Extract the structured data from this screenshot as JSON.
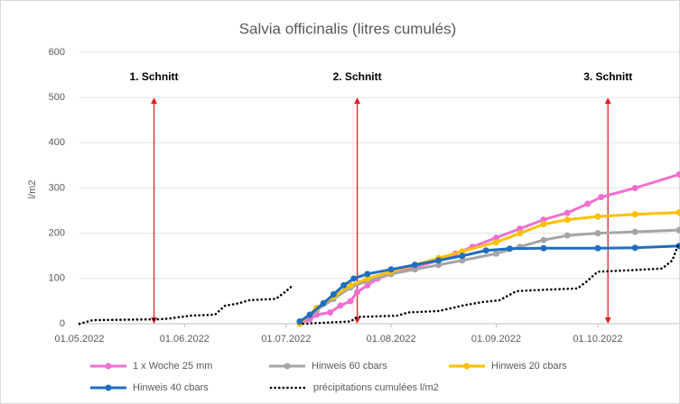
{
  "chart_data": {
    "type": "line",
    "title": "Salvia officinalis (litres cumulés)",
    "y_label": "l/m2",
    "xlim": [
      "01.05.2022",
      "25.10.2022"
    ],
    "xticks": [
      "01.05.2022",
      "01.06.2022",
      "01.07.2022",
      "01.08.2022",
      "01.09.2022",
      "01.10.2022"
    ],
    "ylim": [
      0,
      600
    ],
    "yticks": [
      0,
      100,
      200,
      300,
      400,
      500,
      600
    ],
    "grid": true,
    "legend": "bottom",
    "annotations": [
      {
        "text": "1. Schnitt",
        "x": "23.05.2022",
        "y": [
          0,
          500
        ],
        "color": "#e02020"
      },
      {
        "text": "2. Schnitt",
        "x": "22.07.2022",
        "y": [
          0,
          500
        ],
        "color": "#e02020"
      },
      {
        "text": "3. Schnitt",
        "x": "04.10.2022",
        "y": [
          0,
          500
        ],
        "color": "#e02020"
      }
    ],
    "series": [
      {
        "name": "1 x Woche 25 mm",
        "color": "#f26fd0",
        "markers": true,
        "style": "solid",
        "x": [
          "05.07.2022",
          "08.07.2022",
          "10.07.2022",
          "14.07.2022",
          "17.07.2022",
          "20.07.2022",
          "22.07.2022",
          "25.07.2022",
          "28.07.2022",
          "01.08.2022",
          "08.08.2022",
          "15.08.2022",
          "20.08.2022",
          "25.08.2022",
          "01.09.2022",
          "08.09.2022",
          "15.09.2022",
          "22.09.2022",
          "28.09.2022",
          "02.10.2022",
          "12.10.2022",
          "25.10.2022"
        ],
        "values": [
          0,
          10,
          20,
          25,
          40,
          50,
          70,
          85,
          100,
          110,
          125,
          140,
          155,
          170,
          190,
          210,
          230,
          245,
          265,
          280,
          300,
          330
        ]
      },
      {
        "name": "Hinweis 60 cbars",
        "color": "#a5a5a5",
        "markers": true,
        "style": "solid",
        "x": [
          "05.07.2022",
          "10.07.2022",
          "15.07.2022",
          "20.07.2022",
          "25.07.2022",
          "01.08.2022",
          "08.08.2022",
          "15.08.2022",
          "22.08.2022",
          "01.09.2022",
          "08.09.2022",
          "15.09.2022",
          "22.09.2022",
          "01.10.2022",
          "12.10.2022",
          "25.10.2022"
        ],
        "values": [
          0,
          30,
          55,
          80,
          95,
          110,
          120,
          130,
          140,
          155,
          170,
          185,
          195,
          200,
          203,
          207
        ]
      },
      {
        "name": "Hinweis 20 cbars",
        "color": "#ffc000",
        "markers": true,
        "style": "solid",
        "x": [
          "05.07.2022",
          "10.07.2022",
          "15.07.2022",
          "20.07.2022",
          "25.07.2022",
          "01.08.2022",
          "08.08.2022",
          "15.08.2022",
          "22.08.2022",
          "01.09.2022",
          "08.09.2022",
          "15.09.2022",
          "22.09.2022",
          "01.10.2022",
          "12.10.2022",
          "25.10.2022"
        ],
        "values": [
          0,
          35,
          60,
          85,
          100,
          115,
          130,
          145,
          160,
          180,
          200,
          220,
          230,
          237,
          242,
          246
        ]
      },
      {
        "name": "Hinweis 40 cbars",
        "color": "#1f6fbf",
        "markers": true,
        "style": "solid",
        "x": [
          "05.07.2022",
          "08.07.2022",
          "12.07.2022",
          "15.07.2022",
          "18.07.2022",
          "21.07.2022",
          "25.07.2022",
          "01.08.2022",
          "08.08.2022",
          "15.08.2022",
          "22.08.2022",
          "29.08.2022",
          "05.09.2022",
          "15.09.2022",
          "01.10.2022",
          "12.10.2022",
          "25.10.2022"
        ],
        "values": [
          5,
          20,
          45,
          65,
          85,
          100,
          110,
          120,
          130,
          140,
          150,
          162,
          166,
          167,
          167,
          168,
          172
        ]
      },
      {
        "name": "précipitations cumulées l/m2",
        "color": "#000000",
        "markers": false,
        "style": "dotted",
        "x": [
          "01.05.2022",
          "05.05.2022",
          "25.05.2022",
          "28.05.2022",
          "03.06.2022",
          "10.06.2022",
          "13.06.2022",
          "17.06.2022",
          "20.06.2022",
          "28.06.2022",
          "01.07.2022",
          "03.07.2022",
          "05.07.2022",
          "06.07.2022",
          "20.07.2022",
          "22.07.2022",
          "03.08.2022",
          "06.08.2022",
          "15.08.2022",
          "22.08.2022",
          "28.08.2022",
          "02.09.2022",
          "07.09.2022",
          "15.09.2022",
          "25.09.2022",
          "28.09.2022",
          "01.10.2022",
          "10.10.2022",
          "20.10.2022",
          "23.10.2022",
          "25.10.2022"
        ],
        "values": [
          0,
          8,
          10,
          12,
          18,
          20,
          40,
          45,
          52,
          55,
          72,
          85,
          null,
          0,
          5,
          15,
          18,
          25,
          28,
          40,
          48,
          52,
          72,
          75,
          78,
          95,
          115,
          118,
          122,
          140,
          180
        ]
      }
    ]
  }
}
